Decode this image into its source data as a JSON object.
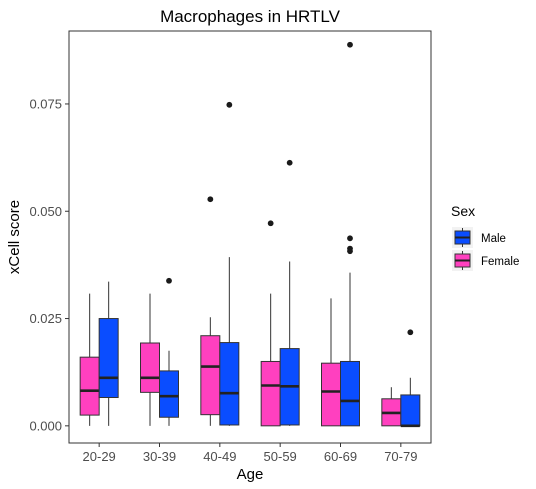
{
  "chart_data": {
    "type": "box",
    "title": "Macrophages in HRTLV",
    "xlabel": "Age",
    "ylabel": "xCell score",
    "categories": [
      "20-29",
      "30-39",
      "40-49",
      "50-59",
      "60-69",
      "70-79"
    ],
    "yticks": [
      "0.000",
      "0.025",
      "0.050",
      "0.075"
    ],
    "ylim": [
      -0.004,
      0.092
    ],
    "grid": false,
    "legend": {
      "title": "Sex",
      "position": "right"
    },
    "series": [
      {
        "name": "Female",
        "color": "#FF40BF",
        "boxes": [
          {
            "min": 0.0,
            "q1": 0.0025,
            "median": 0.0082,
            "q3": 0.016,
            "max": 0.0308,
            "outliers": []
          },
          {
            "min": 0.0,
            "q1": 0.0078,
            "median": 0.0112,
            "q3": 0.0193,
            "max": 0.0308,
            "outliers": []
          },
          {
            "min": 0.0,
            "q1": 0.0026,
            "median": 0.0138,
            "q3": 0.021,
            "max": 0.0253,
            "outliers": [
              0.0528
            ]
          },
          {
            "min": 0.0,
            "q1": 0.0,
            "median": 0.0094,
            "q3": 0.015,
            "max": 0.0308,
            "outliers": [
              0.0472
            ]
          },
          {
            "min": 0.0,
            "q1": 0.0,
            "median": 0.008,
            "q3": 0.0146,
            "max": 0.0297,
            "outliers": []
          },
          {
            "min": 0.0,
            "q1": 0.0,
            "median": 0.003,
            "q3": 0.0063,
            "max": 0.009,
            "outliers": []
          }
        ]
      },
      {
        "name": "Male",
        "color": "#0A4DFF",
        "boxes": [
          {
            "min": 0.0,
            "q1": 0.0066,
            "median": 0.0112,
            "q3": 0.025,
            "max": 0.0336,
            "outliers": []
          },
          {
            "min": 0.0,
            "q1": 0.002,
            "median": 0.0069,
            "q3": 0.0128,
            "max": 0.0175,
            "outliers": [
              0.0338
            ]
          },
          {
            "min": 0.0,
            "q1": 0.0002,
            "median": 0.0076,
            "q3": 0.0194,
            "max": 0.0393,
            "outliers": [
              0.0748
            ]
          },
          {
            "min": 0.0,
            "q1": 0.0002,
            "median": 0.0092,
            "q3": 0.018,
            "max": 0.0383,
            "outliers": [
              0.0613
            ]
          },
          {
            "min": 0.0,
            "q1": 0.0,
            "median": 0.0058,
            "q3": 0.015,
            "max": 0.0357,
            "outliers": [
              0.0407,
              0.0413,
              0.0437,
              0.0888
            ]
          },
          {
            "min": 0.0,
            "q1": 0.0,
            "median": 0.0,
            "q3": 0.0072,
            "max": 0.0112,
            "outliers": [
              0.0218
            ]
          }
        ]
      }
    ]
  }
}
